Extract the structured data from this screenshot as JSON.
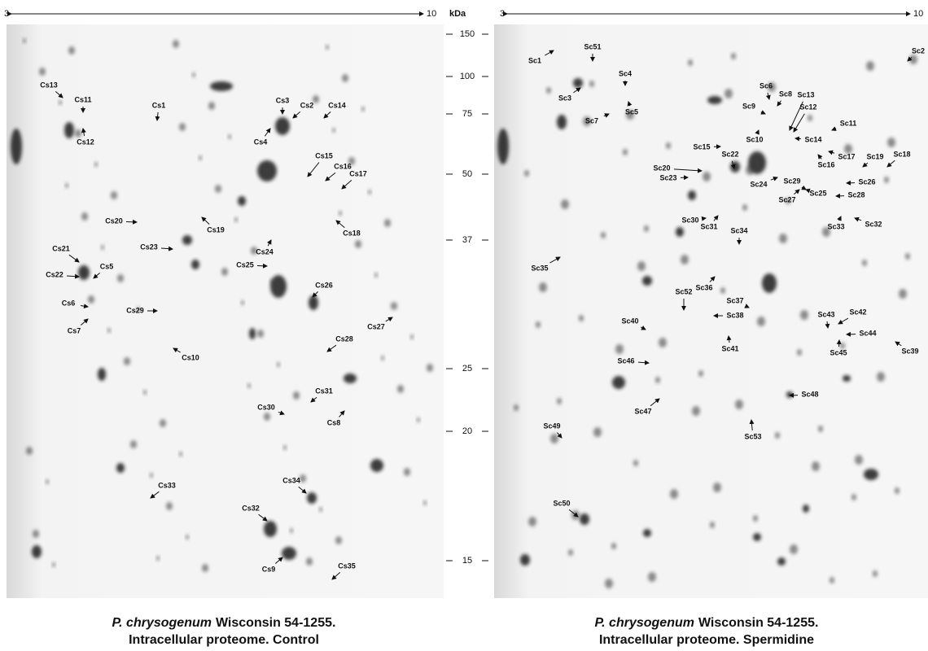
{
  "left_gel": {
    "ph_start": "3",
    "ph_end": "10",
    "spots": [
      "Cs13",
      "Cs11",
      "Cs12",
      "Cs1",
      "Cs3",
      "Cs2",
      "Cs14",
      "Cs4",
      "Cs15",
      "Cs16",
      "Cs17",
      "Cs20",
      "Cs19",
      "Cs18",
      "Cs23",
      "Cs24",
      "Cs21",
      "Cs22",
      "Cs5",
      "Cs25",
      "Cs26",
      "Cs6",
      "Cs29",
      "Cs7",
      "Cs27",
      "Cs28",
      "Cs10",
      "Cs31",
      "Cs30",
      "Cs8",
      "Cs33",
      "Cs34",
      "Cs32",
      "Cs9",
      "Cs35"
    ],
    "caption": {
      "species": "P. chrysogenum",
      "strain": "Wisconsin 54-1255.",
      "condition": "Intracellular proteome. Control"
    }
  },
  "mw_axis": {
    "unit": "kDa",
    "markers": [
      150,
      100,
      75,
      50,
      37,
      25,
      20,
      15
    ]
  },
  "right_gel": {
    "ph_start": "3",
    "ph_end": "10",
    "spots": [
      "Sc1",
      "Sc51",
      "Sc2",
      "Sc4",
      "Sc3",
      "Sc5",
      "Sc7",
      "Sc6",
      "Sc8",
      "Sc13",
      "Sc12",
      "Sc9",
      "Sc11",
      "Sc10",
      "Sc14",
      "Sc15",
      "Sc17",
      "Sc16",
      "Sc19",
      "Sc18",
      "Sc20",
      "Sc22",
      "Sc23",
      "Sc24",
      "Sc29",
      "Sc26",
      "Sc27",
      "Sc25",
      "Sc28",
      "Sc30",
      "Sc31",
      "Sc33",
      "Sc32",
      "Sc34",
      "Sc35",
      "Sc36",
      "Sc52",
      "Sc37",
      "Sc38",
      "Sc43",
      "Sc42",
      "Sc40",
      "Sc44",
      "Sc39",
      "Sc45",
      "Sc41",
      "Sc46",
      "Sc48",
      "Sc47",
      "Sc53",
      "Sc49",
      "Sc50"
    ],
    "caption": {
      "species": "P. chrysogenum",
      "strain": "Wisconsin 54-1255.",
      "condition": "Intracellular proteome. Spermidine"
    }
  }
}
